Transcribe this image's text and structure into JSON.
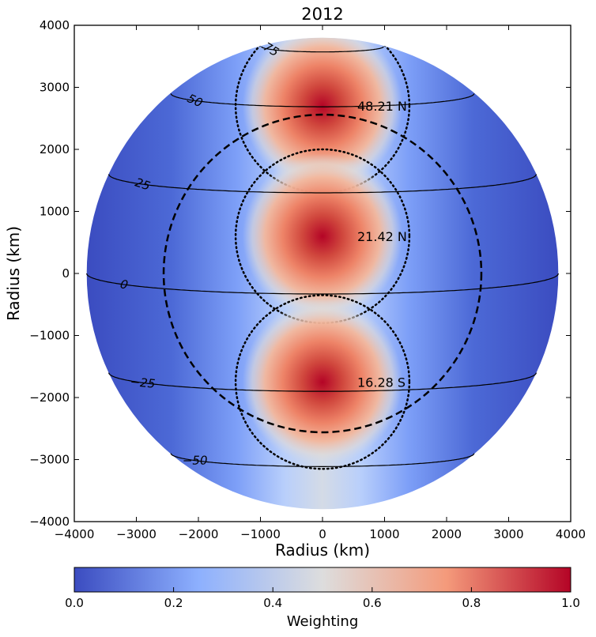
{
  "chart_data": {
    "type": "heatmap",
    "title": "2012",
    "xlabel": "Radius (km)",
    "ylabel": "Radius (km)",
    "xlim": [
      -4000,
      4000
    ],
    "ylim": [
      -4000,
      4000
    ],
    "x_ticks": [
      -4000,
      -3000,
      -2000,
      -1000,
      0,
      1000,
      2000,
      3000,
      4000
    ],
    "y_ticks": [
      -4000,
      -3000,
      -2000,
      -1000,
      0,
      1000,
      2000,
      3000,
      4000
    ],
    "x_tick_labels": [
      "−4000",
      "−3000",
      "−2000",
      "−1000",
      "0",
      "1000",
      "2000",
      "3000",
      "4000"
    ],
    "y_tick_labels": [
      "−4000",
      "−3000",
      "−2000",
      "−1000",
      "0",
      "1000",
      "2000",
      "3000",
      "4000"
    ],
    "planet_radius_km": 3800,
    "inner_circle_radius_km": 2560,
    "beams": [
      {
        "label": "48.21 N",
        "center": [
          0,
          2700
        ],
        "radius_km": 1400
      },
      {
        "label": "21.42 N",
        "center": [
          0,
          600
        ],
        "radius_km": 1400
      },
      {
        "label": "16.28 S",
        "center": [
          0,
          -1750
        ],
        "radius_km": 1400
      }
    ],
    "latitude_contours": [
      75,
      50,
      25,
      0,
      -25,
      -50
    ],
    "latitude_contour_labels": [
      "75",
      "50",
      "25",
      "0",
      "−25",
      "−50"
    ],
    "colorbar": {
      "label": "Weighting",
      "min": 0.0,
      "max": 1.0,
      "ticks": [
        0.0,
        0.2,
        0.4,
        0.6,
        0.8,
        1.0
      ],
      "tick_labels": [
        "0.0",
        "0.2",
        "0.4",
        "0.6",
        "0.8",
        "1.0"
      ],
      "colormap": "coolwarm",
      "colors": [
        "#3b4cc0",
        "#8db0fe",
        "#dddddd",
        "#f49a7b",
        "#b40426"
      ]
    },
    "grid": false
  }
}
